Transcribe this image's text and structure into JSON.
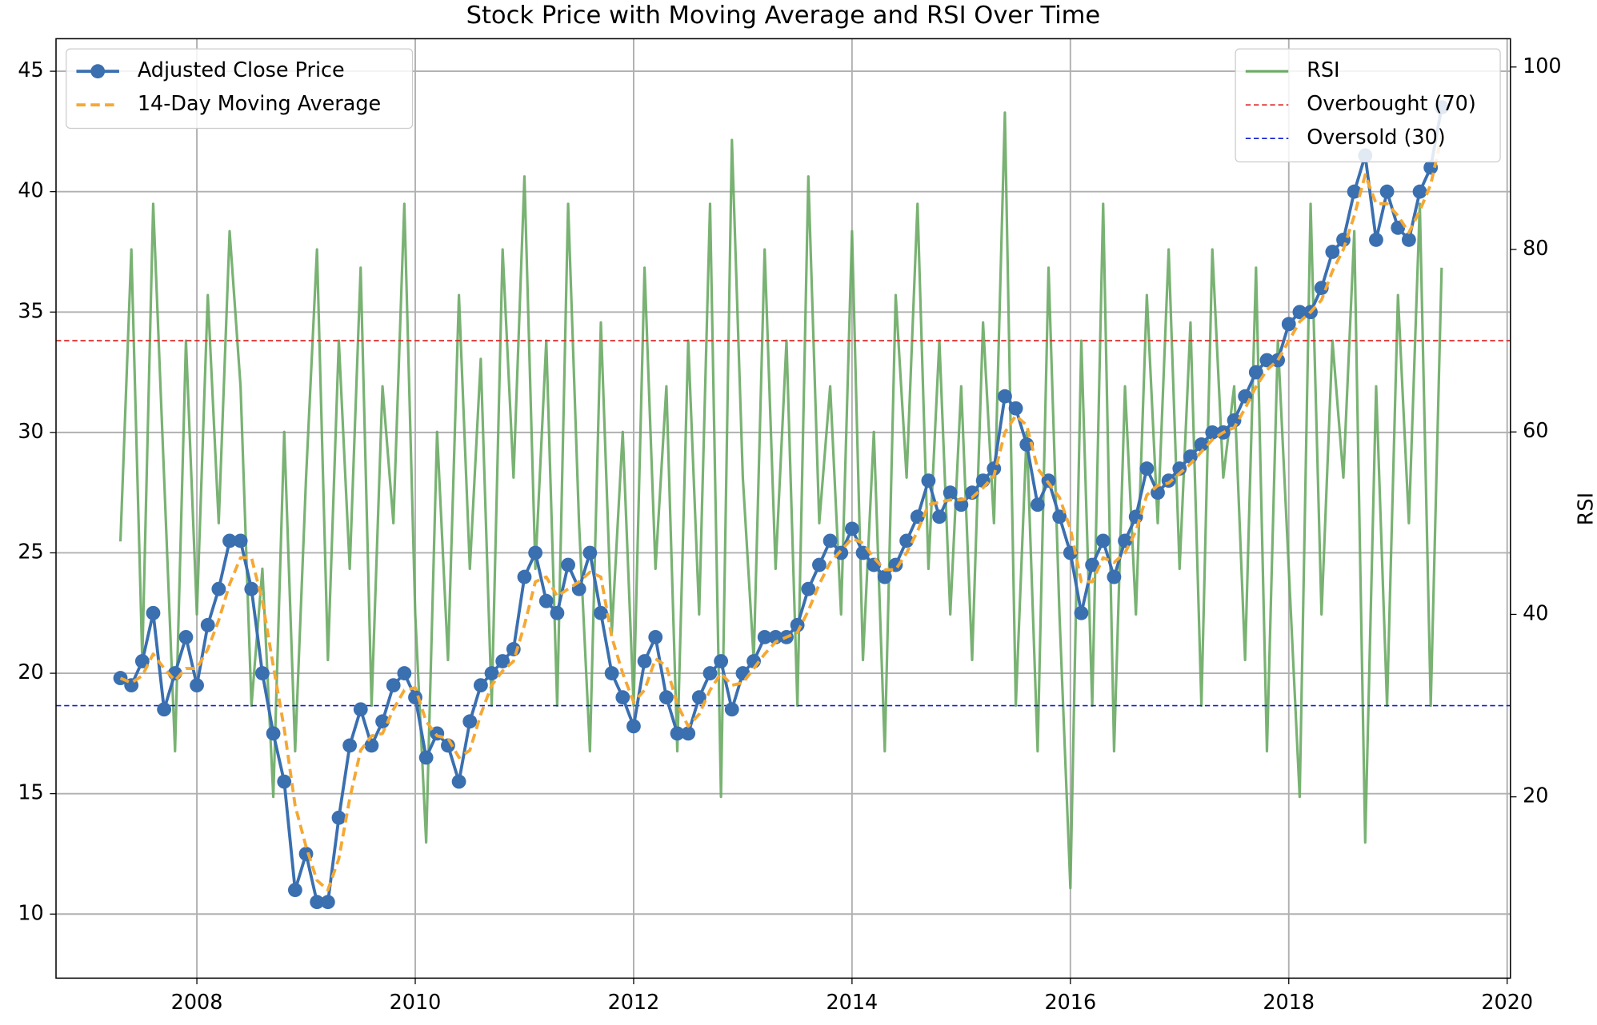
{
  "chart_data": {
    "type": "line",
    "title": "Stock Price with Moving Average and RSI Over Time",
    "y2label": "RSI",
    "x": [
      2007.3,
      2007.4,
      2007.5,
      2007.6,
      2007.7,
      2007.8,
      2007.9,
      2008.0,
      2008.1,
      2008.2,
      2008.3,
      2008.4,
      2008.5,
      2008.6,
      2008.7,
      2008.8,
      2008.9,
      2009.0,
      2009.1,
      2009.2,
      2009.3,
      2009.4,
      2009.5,
      2009.6,
      2009.7,
      2009.8,
      2009.9,
      2010.0,
      2010.1,
      2010.2,
      2010.3,
      2010.4,
      2010.5,
      2010.6,
      2010.7,
      2010.8,
      2010.9,
      2011.0,
      2011.1,
      2011.2,
      2011.3,
      2011.4,
      2011.5,
      2011.6,
      2011.7,
      2011.8,
      2011.9,
      2012.0,
      2012.1,
      2012.2,
      2012.3,
      2012.4,
      2012.5,
      2012.6,
      2012.7,
      2012.8,
      2012.9,
      2013.0,
      2013.1,
      2013.2,
      2013.3,
      2013.4,
      2013.5,
      2013.6,
      2013.7,
      2013.8,
      2013.9,
      2014.0,
      2014.1,
      2014.2,
      2014.3,
      2014.4,
      2014.5,
      2014.6,
      2014.7,
      2014.8,
      2014.9,
      2015.0,
      2015.1,
      2015.2,
      2015.3,
      2015.4,
      2015.5,
      2015.6,
      2015.7,
      2015.8,
      2015.9,
      2016.0,
      2016.1,
      2016.2,
      2016.3,
      2016.4,
      2016.5,
      2016.6,
      2016.7,
      2016.8,
      2016.9,
      2017.0,
      2017.1,
      2017.2,
      2017.3,
      2017.4,
      2017.5,
      2017.6,
      2017.7,
      2017.8,
      2017.9,
      2018.0,
      2018.1,
      2018.2,
      2018.3,
      2018.4,
      2018.5,
      2018.6,
      2018.7,
      2018.8,
      2018.9,
      2019.0,
      2019.1,
      2019.2,
      2019.3,
      2019.4
    ],
    "series": [
      {
        "name": "Adjusted Close Price",
        "color": "#3a6fb0",
        "marker": true,
        "values": [
          19.8,
          19.5,
          20.5,
          22.5,
          18.5,
          20,
          21.5,
          19.5,
          22,
          23.5,
          25.5,
          25.5,
          23.5,
          20,
          17.5,
          15.5,
          11,
          12.5,
          10.5,
          10.5,
          14,
          17,
          18.5,
          17,
          18,
          19.5,
          20,
          19,
          16.5,
          17.5,
          17,
          15.5,
          18,
          19.5,
          20,
          20.5,
          21,
          24,
          25,
          23,
          22.5,
          24.5,
          23.5,
          25,
          22.5,
          20,
          19,
          17.8,
          20.5,
          21.5,
          19,
          17.5,
          17.5,
          19,
          20,
          20.5,
          18.5,
          20,
          20.5,
          21.5,
          21.5,
          21.5,
          22,
          23.5,
          24.5,
          25.5,
          25,
          26,
          25,
          24.5,
          24,
          24.5,
          25.5,
          26.5,
          28,
          26.5,
          27.5,
          27,
          27.5,
          28,
          28.5,
          31.5,
          31,
          29.5,
          27,
          28,
          26.5,
          25,
          22.5,
          24.5,
          25.5,
          24,
          25.5,
          26.5,
          28.5,
          27.5,
          28,
          28.5,
          29,
          29.5,
          30,
          30,
          30.5,
          31.5,
          32.5,
          33,
          33,
          34.5,
          35,
          35,
          36,
          37.5,
          38,
          40,
          41.5,
          38,
          40,
          38.5,
          38,
          40,
          41,
          43.5
        ]
      },
      {
        "name": "14-Day Moving Average",
        "color": "#f5a833",
        "dashed": true,
        "values": [
          19.8,
          19.6,
          19.9,
          20.8,
          20.2,
          19.7,
          20.2,
          20.2,
          21,
          22.2,
          23.7,
          24.8,
          24.8,
          23,
          20.3,
          17.7,
          14.5,
          12.8,
          11.4,
          11,
          12.3,
          14.8,
          16.8,
          17.4,
          17.5,
          18.5,
          19.3,
          19.4,
          18,
          17.4,
          17.3,
          16.5,
          16.8,
          18.3,
          19.5,
          20.1,
          20.5,
          22,
          23.8,
          24,
          23.2,
          23.5,
          23.8,
          24.2,
          24,
          21.5,
          20,
          18.8,
          19.3,
          20.6,
          20.3,
          18.7,
          17.8,
          18.3,
          19.3,
          20,
          19.5,
          19.6,
          20.2,
          20.8,
          21.3,
          21.5,
          21.7,
          22.6,
          23.7,
          24.6,
          25.1,
          25.6,
          25.4,
          24.8,
          24.3,
          24.3,
          25,
          25.9,
          27,
          27.1,
          27.2,
          27.2,
          27.3,
          27.7,
          28.2,
          30,
          30.7,
          30.3,
          28.5,
          27.9,
          27.3,
          26,
          23.8,
          23.8,
          24.8,
          24.6,
          25,
          25.9,
          27.4,
          27.8,
          27.9,
          28.3,
          28.7,
          29.2,
          29.7,
          30,
          30.2,
          31,
          31.9,
          32.6,
          33,
          33.8,
          34.6,
          35,
          35.5,
          36.7,
          37.6,
          39,
          40.7,
          39.5,
          39.5,
          39,
          38.3,
          39.2,
          40.3,
          42.3
        ]
      },
      {
        "name": "RSI",
        "color": "#6aaa64",
        "axis": "y2",
        "values": [
          48,
          80,
          35,
          85,
          55,
          25,
          70,
          40,
          75,
          50,
          82,
          65,
          30,
          45,
          20,
          60,
          25,
          55,
          80,
          35,
          70,
          45,
          78,
          30,
          65,
          50,
          85,
          40,
          15,
          60,
          35,
          75,
          45,
          68,
          30,
          80,
          55,
          88,
          45,
          70,
          30,
          85,
          50,
          25,
          72,
          38,
          60,
          30,
          78,
          45,
          65,
          25,
          70,
          40,
          85,
          20,
          92,
          55,
          35,
          80,
          45,
          70,
          30,
          88,
          50,
          65,
          40,
          82,
          35,
          60,
          25,
          75,
          55,
          85,
          45,
          70,
          40,
          65,
          35,
          72,
          50,
          95,
          30,
          60,
          25,
          78,
          40,
          10,
          70,
          30,
          85,
          25,
          65,
          40,
          75,
          50,
          80,
          45,
          72,
          30,
          80,
          55,
          65,
          35,
          78,
          25,
          70,
          45,
          20,
          85,
          40,
          70,
          55,
          82,
          15,
          65,
          30,
          75,
          50,
          85,
          30,
          78
        ]
      }
    ],
    "hlines": [
      {
        "name": "Overbought (70)",
        "value": 70,
        "color": "#e02020",
        "axis": "y2"
      },
      {
        "name": "Oversold (30)",
        "value": 30,
        "color": "#1020d0",
        "axis": "y2"
      }
    ],
    "xlim": [
      2006.71,
      2020.03
    ],
    "xticks": [
      2008,
      2010,
      2012,
      2014,
      2016,
      2018,
      2020
    ],
    "ylim": [
      7.34,
      46.35
    ],
    "yticks": [
      10,
      15,
      20,
      25,
      30,
      35,
      40,
      45
    ],
    "y2lim": [
      0.13,
      103.1
    ],
    "y2ticks": [
      20,
      40,
      60,
      80,
      100
    ],
    "grid": true,
    "legend": "upper left",
    "legend2": "upper right"
  }
}
